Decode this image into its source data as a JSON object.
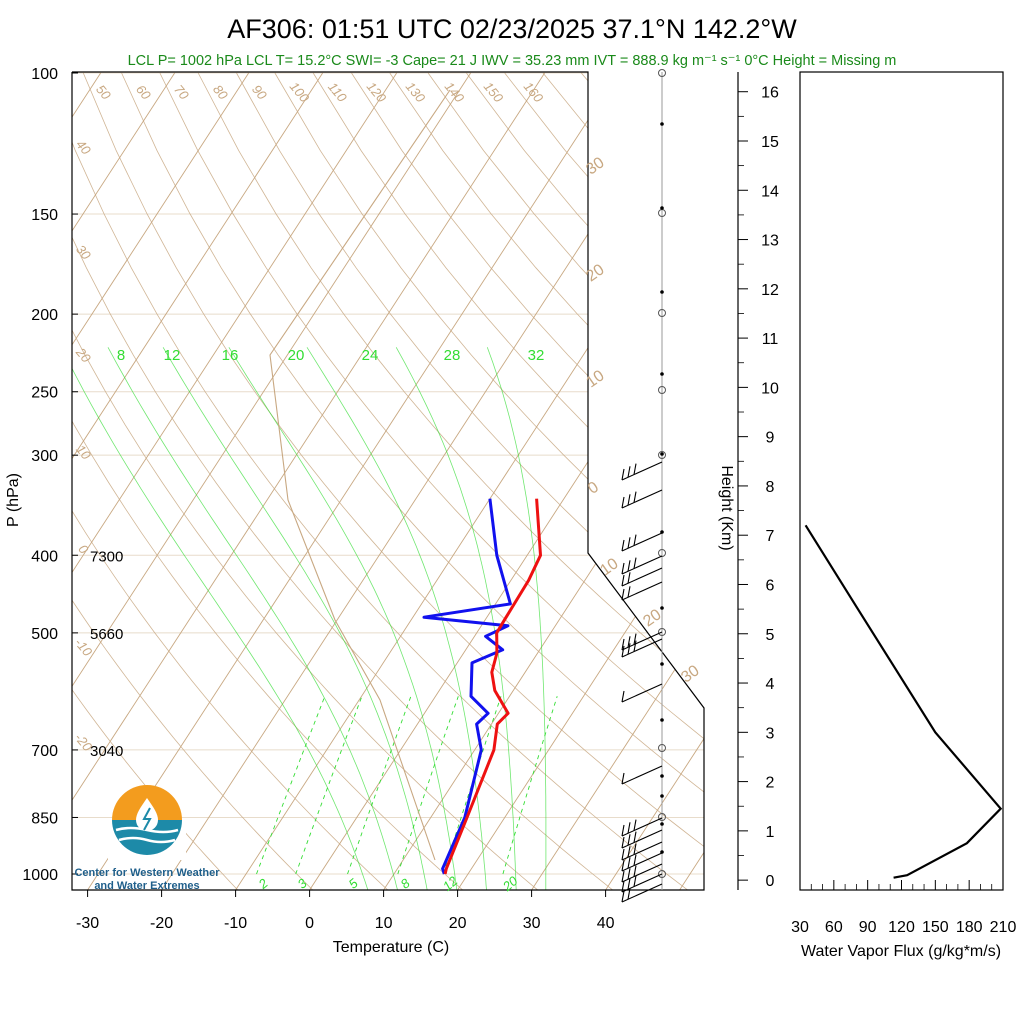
{
  "title": "AF306: 01:51 UTC 02/23/2025  37.1°N 142.2°W",
  "subtitle": "LCL P= 1002 hPa  LCL T= 15.2°C  SWI= -3  Cape= 21 J  IWV = 35.23 mm  IVT = 888.9 kg m⁻¹ s⁻¹  0°C Height = Missing m",
  "logo": {
    "line1": "Center for Western Weather",
    "line2": "and Water Extremes"
  },
  "colors": {
    "temperature": "#ee1111",
    "dewpoint": "#1111ee",
    "isotherm": "#c8a882",
    "mixing_ratio": "#33dd33",
    "flux": "#000000",
    "logo_orange": "#f39c1e",
    "logo_teal": "#1d8aa8"
  },
  "chart_data": [
    {
      "type": "line",
      "name": "skew-t",
      "xlabel": "Temperature (C)",
      "ylabel": "P (hPa)",
      "x_ticks": [
        "-30",
        "-20",
        "-10",
        "0",
        "10",
        "20",
        "30",
        "40"
      ],
      "p_ticks": [
        "100",
        "150",
        "200",
        "250",
        "300",
        "400",
        "500",
        "700",
        "850",
        "1000"
      ],
      "p_tick_values": [
        100,
        150,
        200,
        250,
        300,
        400,
        500,
        700,
        850,
        1000
      ],
      "height_labels": [
        {
          "p": 400,
          "text": "7300"
        },
        {
          "p": 500,
          "text": "5660"
        },
        {
          "p": 700,
          "text": "3040"
        }
      ],
      "dry_adiabat_labels": [
        "50",
        "60",
        "70",
        "80",
        "90",
        "100",
        "110",
        "120",
        "130",
        "140",
        "150",
        "160"
      ],
      "isotherm_labels": [
        "40",
        "30",
        "20",
        "10",
        "0",
        "-10",
        "-20"
      ],
      "moist_adiabat_labels": [
        "30",
        "20",
        "10",
        "0",
        "10",
        "20",
        "30"
      ],
      "mixing_ratio_top": [
        "8",
        "12",
        "16",
        "20",
        "24",
        "28",
        "32"
      ],
      "mixing_ratio_bottom": [
        "2",
        "3",
        "5",
        "8",
        "12",
        "20"
      ],
      "temperature": [
        {
          "p": 1000,
          "t": 16.9
        },
        {
          "p": 985,
          "t": 16.6
        },
        {
          "p": 850,
          "t": 14.9
        },
        {
          "p": 700,
          "t": 12.6
        },
        {
          "p": 650,
          "t": 10.8
        },
        {
          "p": 630,
          "t": 11.3
        },
        {
          "p": 590,
          "t": 7.5
        },
        {
          "p": 560,
          "t": 5.5
        },
        {
          "p": 530,
          "t": 4.5
        },
        {
          "p": 500,
          "t": 2.7
        },
        {
          "p": 480,
          "t": 2.6
        },
        {
          "p": 430,
          "t": 2.4
        },
        {
          "p": 400,
          "t": 1.8
        },
        {
          "p": 340,
          "t": -3.7
        }
      ],
      "dewpoint": [
        {
          "p": 1000,
          "t": 16.8
        },
        {
          "p": 985,
          "t": 16.1
        },
        {
          "p": 850,
          "t": 14.6
        },
        {
          "p": 700,
          "t": 10.9
        },
        {
          "p": 650,
          "t": 8.0
        },
        {
          "p": 630,
          "t": 8.6
        },
        {
          "p": 600,
          "t": 4.8
        },
        {
          "p": 545,
          "t": 2.0
        },
        {
          "p": 525,
          "t": 5.0
        },
        {
          "p": 505,
          "t": 1.5
        },
        {
          "p": 490,
          "t": 3.6
        },
        {
          "p": 478,
          "t": -8.5
        },
        {
          "p": 460,
          "t": 2.0
        },
        {
          "p": 400,
          "t": -4.1
        },
        {
          "p": 340,
          "t": -10.0
        }
      ]
    },
    {
      "type": "line",
      "name": "water-vapor-flux",
      "xlabel": "Water Vapor Flux (g/kg*m/s)",
      "ylabel": "Height (Km)",
      "x_ticks": [
        "30",
        "60",
        "90",
        "120",
        "150",
        "180",
        "210"
      ],
      "y_ticks": [
        "0",
        "1",
        "2",
        "3",
        "4",
        "5",
        "6",
        "7",
        "8",
        "9",
        "10",
        "11",
        "12",
        "13",
        "14",
        "15",
        "16"
      ],
      "xlim": [
        30,
        210
      ],
      "ylim": [
        -0.2,
        16.4
      ],
      "x": [
        113,
        125,
        178,
        208,
        150,
        80,
        35
      ],
      "y": [
        0.05,
        0.1,
        0.75,
        1.45,
        3.0,
        5.55,
        7.2
      ]
    }
  ]
}
